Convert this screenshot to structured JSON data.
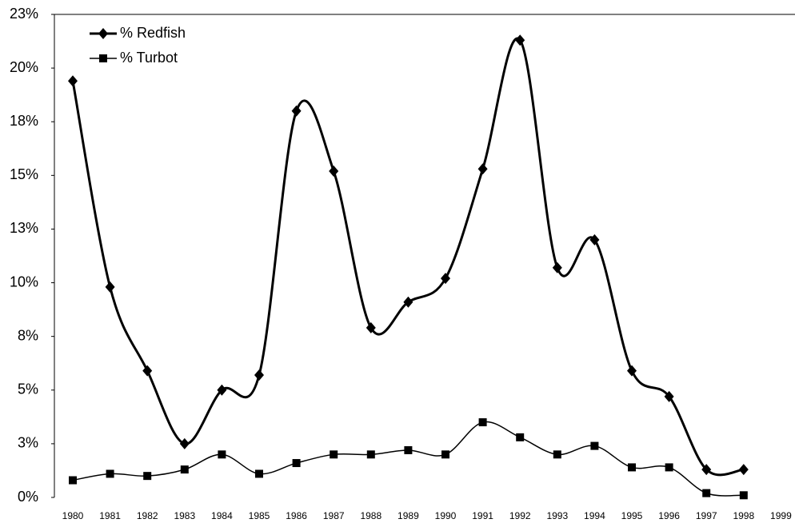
{
  "chart_data": {
    "type": "line",
    "categories": [
      "1980",
      "1981",
      "1982",
      "1983",
      "1984",
      "1985",
      "1986",
      "1987",
      "1988",
      "1989",
      "1990",
      "1991",
      "1992",
      "1993",
      "1994",
      "1995",
      "1996",
      "1997",
      "1998",
      "1999"
    ],
    "series": [
      {
        "name": "% Redfish",
        "color": "#000000",
        "marker": "diamond",
        "values": [
          19.4,
          9.8,
          5.9,
          2.5,
          5.0,
          5.7,
          18.0,
          15.2,
          7.9,
          9.1,
          10.2,
          15.3,
          21.3,
          10.7,
          12.0,
          5.9,
          4.7,
          1.3,
          1.3,
          null
        ]
      },
      {
        "name": "% Turbot",
        "color": "#000000",
        "marker": "square",
        "values": [
          0.8,
          1.1,
          1.0,
          1.3,
          2.0,
          1.1,
          1.6,
          2.0,
          2.0,
          2.2,
          2.0,
          3.5,
          2.8,
          2.0,
          2.4,
          1.4,
          1.4,
          0.2,
          0.1,
          null
        ]
      }
    ],
    "ylim": [
      0,
      22.5
    ],
    "yticks": [
      {
        "value": 0,
        "label": "0%"
      },
      {
        "value": 2.5,
        "label": "3%"
      },
      {
        "value": 5,
        "label": "5%"
      },
      {
        "value": 7.5,
        "label": "8%"
      },
      {
        "value": 10,
        "label": "10%"
      },
      {
        "value": 12.5,
        "label": "13%"
      },
      {
        "value": 15,
        "label": "15%"
      },
      {
        "value": 17.5,
        "label": "18%"
      },
      {
        "value": 20,
        "label": "20%"
      },
      {
        "value": 22.5,
        "label": "23%"
      }
    ],
    "legend": "upper-left",
    "smooth": true
  }
}
